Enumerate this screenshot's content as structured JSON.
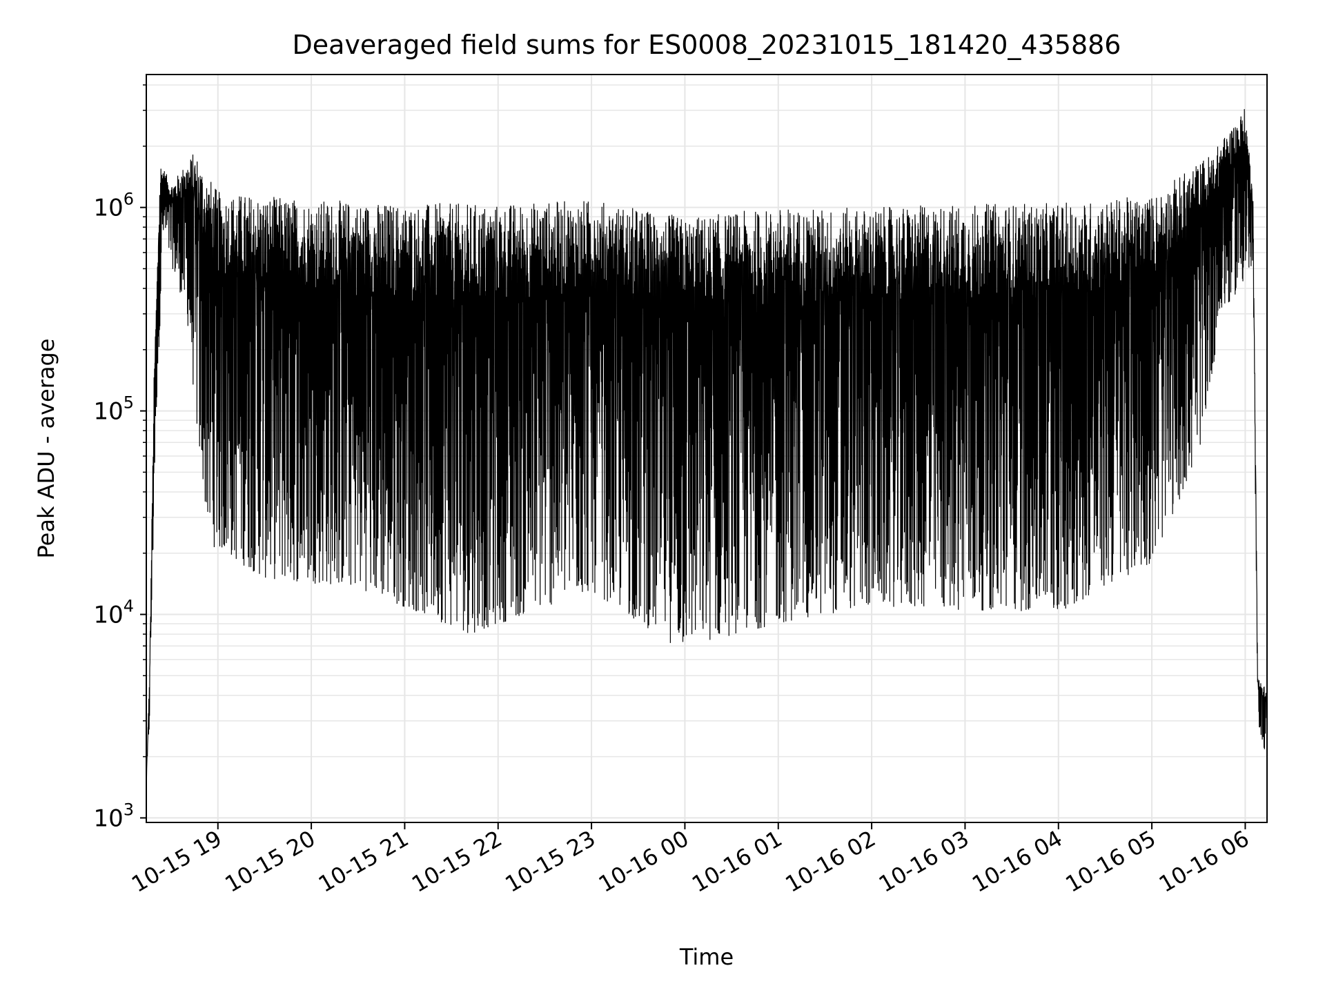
{
  "chart_data": {
    "type": "line",
    "title": "Deaveraged field sums for ES0008_20231015_181420_435886",
    "xlabel": "Time",
    "ylabel": "Peak ADU - average",
    "yscale": "log",
    "ylim": [
      950,
      4500000
    ],
    "xlim": [
      "2023-10-15T18:14",
      "2023-10-16T06:14"
    ],
    "grid": true,
    "y_ticks": [
      {
        "value": 1000,
        "base": "10",
        "exp": "3"
      },
      {
        "value": 10000,
        "base": "10",
        "exp": "4"
      },
      {
        "value": 100000,
        "base": "10",
        "exp": "5"
      },
      {
        "value": 1000000,
        "base": "10",
        "exp": "6"
      }
    ],
    "x_ticks": [
      {
        "t": "2023-10-15T19:00",
        "label": "10-15 19"
      },
      {
        "t": "2023-10-15T20:00",
        "label": "10-15 20"
      },
      {
        "t": "2023-10-15T21:00",
        "label": "10-15 21"
      },
      {
        "t": "2023-10-15T22:00",
        "label": "10-15 22"
      },
      {
        "t": "2023-10-15T23:00",
        "label": "10-15 23"
      },
      {
        "t": "2023-10-16T00:00",
        "label": "10-16 00"
      },
      {
        "t": "2023-10-16T01:00",
        "label": "10-16 01"
      },
      {
        "t": "2023-10-16T02:00",
        "label": "10-16 02"
      },
      {
        "t": "2023-10-16T03:00",
        "label": "10-16 03"
      },
      {
        "t": "2023-10-16T04:00",
        "label": "10-16 04"
      },
      {
        "t": "2023-10-16T05:00",
        "label": "10-16 05"
      },
      {
        "t": "2023-10-16T06:00",
        "label": "10-16 06"
      }
    ],
    "series": [
      {
        "color": "#000000",
        "envelope_upper": [
          {
            "t": "2023-10-15T18:14",
            "v": 1500
          },
          {
            "t": "2023-10-15T18:16",
            "v": 4800
          },
          {
            "t": "2023-10-15T18:19",
            "v": 150000
          },
          {
            "t": "2023-10-15T18:23",
            "v": 1700000
          },
          {
            "t": "2023-10-15T18:30",
            "v": 1300000
          },
          {
            "t": "2023-10-15T18:45",
            "v": 1900000
          },
          {
            "t": "2023-10-15T19:00",
            "v": 1200000
          },
          {
            "t": "2023-10-15T20:00",
            "v": 1100000
          },
          {
            "t": "2023-10-15T21:00",
            "v": 1050000
          },
          {
            "t": "2023-10-15T22:00",
            "v": 1050000
          },
          {
            "t": "2023-10-15T23:00",
            "v": 1100000
          },
          {
            "t": "2023-10-16T00:00",
            "v": 900000
          },
          {
            "t": "2023-10-16T01:00",
            "v": 1000000
          },
          {
            "t": "2023-10-16T02:00",
            "v": 1000000
          },
          {
            "t": "2023-10-16T03:00",
            "v": 1050000
          },
          {
            "t": "2023-10-16T04:00",
            "v": 1050000
          },
          {
            "t": "2023-10-16T05:00",
            "v": 1150000
          },
          {
            "t": "2023-10-16T05:40",
            "v": 1900000
          },
          {
            "t": "2023-10-16T06:00",
            "v": 3100000
          },
          {
            "t": "2023-10-16T06:05",
            "v": 1200000
          },
          {
            "t": "2023-10-16T06:08",
            "v": 5000
          },
          {
            "t": "2023-10-16T06:14",
            "v": 4300
          }
        ],
        "envelope_lower": [
          {
            "t": "2023-10-15T18:14",
            "v": 1400
          },
          {
            "t": "2023-10-15T18:16",
            "v": 2800
          },
          {
            "t": "2023-10-15T18:20",
            "v": 80000
          },
          {
            "t": "2023-10-15T18:25",
            "v": 700000
          },
          {
            "t": "2023-10-15T18:40",
            "v": 300000
          },
          {
            "t": "2023-10-15T18:48",
            "v": 60000
          },
          {
            "t": "2023-10-15T18:55",
            "v": 22000
          },
          {
            "t": "2023-10-15T19:30",
            "v": 15000
          },
          {
            "t": "2023-10-15T20:30",
            "v": 13500
          },
          {
            "t": "2023-10-15T21:42",
            "v": 8000
          },
          {
            "t": "2023-10-15T23:00",
            "v": 13000
          },
          {
            "t": "2023-10-15T23:56",
            "v": 6800
          },
          {
            "t": "2023-10-16T01:00",
            "v": 9000
          },
          {
            "t": "2023-10-16T02:00",
            "v": 11000
          },
          {
            "t": "2023-10-16T03:00",
            "v": 10500
          },
          {
            "t": "2023-10-16T04:00",
            "v": 10200
          },
          {
            "t": "2023-10-16T05:00",
            "v": 18000
          },
          {
            "t": "2023-10-16T05:30",
            "v": 60000
          },
          {
            "t": "2023-10-16T05:45",
            "v": 300000
          },
          {
            "t": "2023-10-16T06:05",
            "v": 500000
          },
          {
            "t": "2023-10-16T06:08",
            "v": 3000
          },
          {
            "t": "2023-10-16T06:14",
            "v": 1900
          }
        ]
      }
    ]
  }
}
